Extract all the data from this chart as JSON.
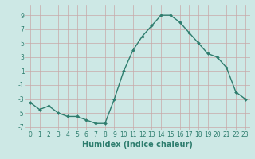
{
  "x": [
    0,
    1,
    2,
    3,
    4,
    5,
    6,
    7,
    8,
    9,
    10,
    11,
    12,
    13,
    14,
    15,
    16,
    17,
    18,
    19,
    20,
    21,
    22,
    23
  ],
  "y": [
    -3.5,
    -4.5,
    -4.0,
    -5.0,
    -5.5,
    -5.5,
    -6.0,
    -6.5,
    -6.5,
    -3.0,
    1.0,
    4.0,
    6.0,
    7.5,
    9.0,
    9.0,
    8.0,
    6.5,
    5.0,
    3.5,
    3.0,
    1.5,
    -2.0,
    -3.0
  ],
  "line_color": "#2e7d6e",
  "marker": "D",
  "marker_size": 2.0,
  "line_width": 1.0,
  "xlabel": "Humidex (Indice chaleur)",
  "xlim": [
    -0.5,
    23.5
  ],
  "ylim": [
    -7.5,
    10.5
  ],
  "yticks": [
    -7,
    -5,
    -3,
    -1,
    1,
    3,
    5,
    7,
    9
  ],
  "xticks": [
    0,
    1,
    2,
    3,
    4,
    5,
    6,
    7,
    8,
    9,
    10,
    11,
    12,
    13,
    14,
    15,
    16,
    17,
    18,
    19,
    20,
    21,
    22,
    23
  ],
  "background_color": "#cde8e5",
  "grid_color": "#c8a8a8",
  "tick_color": "#2e7d6e",
  "label_color": "#2e7d6e",
  "xlabel_fontsize": 7,
  "tick_fontsize": 5.5
}
